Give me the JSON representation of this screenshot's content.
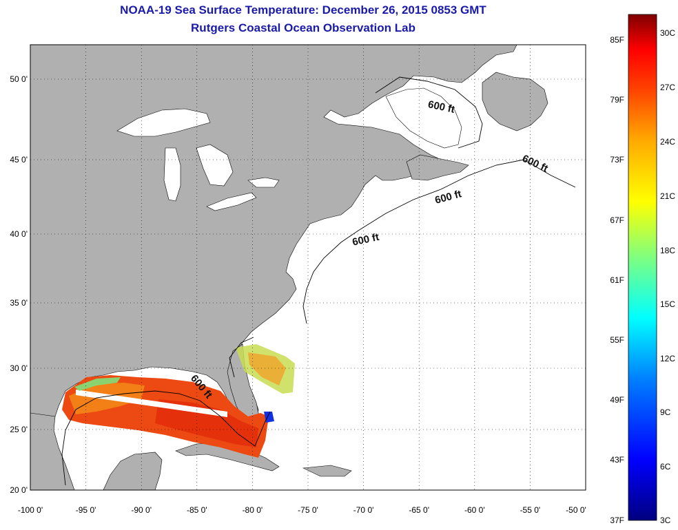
{
  "title": "NOAA-19 Sea Surface Temperature:  December 26, 2015 0853 GMT",
  "subtitle": "Rutgers Coastal Ocean Observation Lab",
  "map": {
    "lon_range": [
      -100,
      -50
    ],
    "lat_range": [
      20,
      52.5
    ],
    "lon_ticks": [
      "-100 0'",
      "-95 0'",
      "-90 0'",
      "-85 0'",
      "-80 0'",
      "-75 0'",
      "-70 0'",
      "-65 0'",
      "-60 0'",
      "-55 0'",
      "-50 0'"
    ],
    "lat_ticks": [
      "20 0'",
      "25 0'",
      "30 0'",
      "35 0'",
      "40 0'",
      "45 0'",
      "50 0'"
    ],
    "contour_labels": [
      "600 ft",
      "600 ft",
      "600 ft",
      "600 ft",
      "600 ft"
    ],
    "colors": {
      "land": "#b0b0b0",
      "ocean": "#ffffff",
      "grid": "#000000"
    }
  },
  "colorbar": {
    "fahrenheit_labels": [
      "85F",
      "79F",
      "73F",
      "67F",
      "61F",
      "55F",
      "49F",
      "43F",
      "37F"
    ],
    "celsius_labels": [
      "30C",
      "27C",
      "24C",
      "21C",
      "18C",
      "15C",
      "12C",
      "9C",
      "6C",
      "3C"
    ],
    "colors": [
      "#00007f",
      "#0000ff",
      "#00aaff",
      "#00ffff",
      "#7fff7f",
      "#ffff00",
      "#ffaa00",
      "#ff5500",
      "#ff0000",
      "#7f0000"
    ]
  }
}
